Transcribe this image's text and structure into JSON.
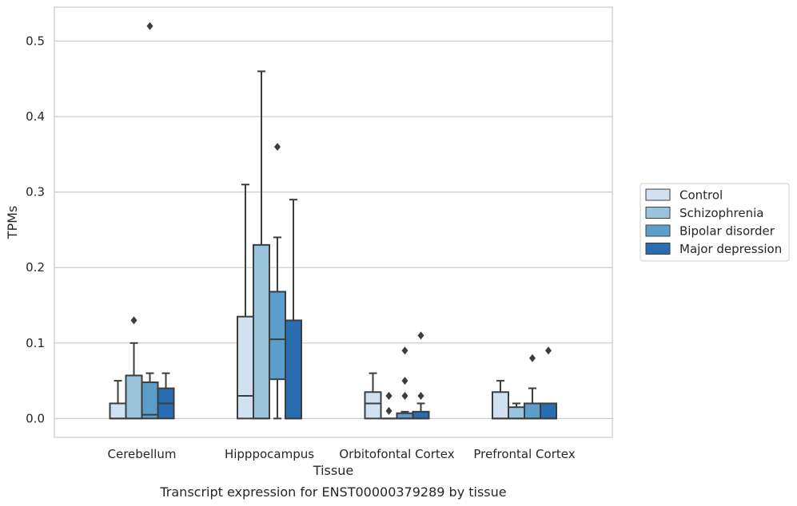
{
  "chart_data": {
    "type": "boxplot",
    "xlabel": "Tissue",
    "ylabel": "TPMs",
    "caption": "Transcript expression for ENST00000379289 by tissue",
    "ylim": [
      -0.025,
      0.545
    ],
    "yticks": [
      0.0,
      0.1,
      0.2,
      0.3,
      0.4,
      0.5
    ],
    "ytick_labels": [
      "0.0",
      "0.1",
      "0.2",
      "0.3",
      "0.4",
      "0.5"
    ],
    "grid": "horizontal",
    "legend_position": "right",
    "categories": [
      "Cerebellum",
      "Hipppocampus",
      "Orbitofontal Cortex",
      "Prefrontal Cortex"
    ],
    "series": [
      {
        "name": "Control",
        "color": "#d1e1f0",
        "boxes": [
          {
            "whislo": 0.0,
            "q1": 0.0,
            "med": 0.0,
            "q3": 0.02,
            "whishi": 0.05,
            "fliers": []
          },
          {
            "whislo": 0.0,
            "q1": 0.0,
            "med": 0.03,
            "q3": 0.135,
            "whishi": 0.31,
            "fliers": []
          },
          {
            "whislo": 0.0,
            "q1": 0.0,
            "med": 0.02,
            "q3": 0.035,
            "whishi": 0.06,
            "fliers": []
          },
          {
            "whislo": 0.0,
            "q1": 0.0,
            "med": 0.0,
            "q3": 0.035,
            "whishi": 0.05,
            "fliers": []
          }
        ]
      },
      {
        "name": "Schizophrenia",
        "color": "#9ac4de",
        "boxes": [
          {
            "whislo": 0.0,
            "q1": 0.0,
            "med": 0.0,
            "q3": 0.057,
            "whishi": 0.1,
            "fliers": [
              0.13
            ]
          },
          {
            "whislo": 0.0,
            "q1": 0.0,
            "med": 0.0,
            "q3": 0.23,
            "whishi": 0.46,
            "fliers": []
          },
          {
            "whislo": 0.0,
            "q1": 0.0,
            "med": 0.0,
            "q3": 0.0,
            "whishi": 0.0,
            "fliers": [
              0.01,
              0.03,
              0.03
            ]
          },
          {
            "whislo": 0.0,
            "q1": 0.0,
            "med": 0.0,
            "q3": 0.015,
            "whishi": 0.02,
            "fliers": []
          }
        ]
      },
      {
        "name": "Bipolar disorder",
        "color": "#5a9ec9",
        "boxes": [
          {
            "whislo": 0.0,
            "q1": 0.0,
            "med": 0.005,
            "q3": 0.048,
            "whishi": 0.06,
            "fliers": [
              0.52
            ]
          },
          {
            "whislo": 0.0,
            "q1": 0.052,
            "med": 0.105,
            "q3": 0.168,
            "whishi": 0.24,
            "fliers": [
              0.36
            ]
          },
          {
            "whislo": 0.0,
            "q1": 0.0,
            "med": 0.0,
            "q3": 0.007,
            "whishi": 0.009,
            "fliers": [
              0.03,
              0.05,
              0.09
            ]
          },
          {
            "whislo": 0.0,
            "q1": 0.0,
            "med": 0.0,
            "q3": 0.02,
            "whishi": 0.04,
            "fliers": [
              0.08
            ]
          }
        ]
      },
      {
        "name": "Major depression",
        "color": "#2a6cb0",
        "boxes": [
          {
            "whislo": 0.0,
            "q1": 0.0,
            "med": 0.02,
            "q3": 0.04,
            "whishi": 0.06,
            "fliers": []
          },
          {
            "whislo": 0.0,
            "q1": 0.0,
            "med": 0.0,
            "q3": 0.13,
            "whishi": 0.29,
            "fliers": []
          },
          {
            "whislo": 0.0,
            "q1": 0.0,
            "med": 0.0,
            "q3": 0.009,
            "whishi": 0.02,
            "fliers": [
              0.03,
              0.11
            ]
          },
          {
            "whislo": 0.0,
            "q1": 0.0,
            "med": 0.0,
            "q3": 0.02,
            "whishi": 0.02,
            "fliers": [
              0.09
            ]
          }
        ]
      }
    ],
    "colors": {
      "box_edge": "#3d3d3d",
      "grid": "#cccccc",
      "frame": "#cccccc",
      "text": "#262626",
      "background": "#ffffff"
    }
  }
}
